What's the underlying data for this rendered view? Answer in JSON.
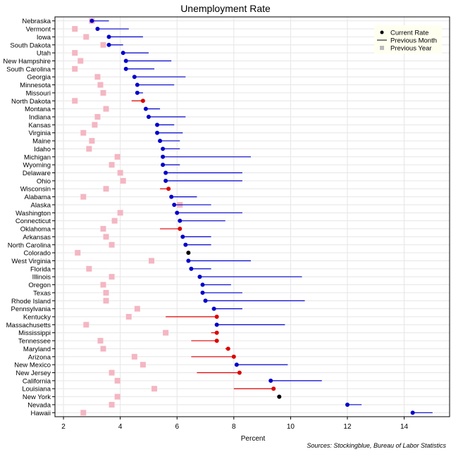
{
  "chart_data": {
    "type": "dot",
    "title": "Unemployment Rate",
    "xlabel": "Percent",
    "ylabel": "",
    "xlim": [
      1.7,
      15.6
    ],
    "x_ticks": [
      2,
      4,
      6,
      8,
      10,
      12,
      14
    ],
    "grid": true,
    "legend_position": "top-right",
    "source": "Sources: Stockingblue, Bureau of Labor Statistics",
    "legend": [
      {
        "label": "Current Rate",
        "marker": "dot"
      },
      {
        "label": "Previous Month",
        "marker": "line"
      },
      {
        "label": "Previous Year",
        "marker": "square"
      }
    ],
    "colors": {
      "improved": "#0000cc",
      "worsened": "#dd0000",
      "unchanged": "#000000",
      "previous_year": "#f4b6c2",
      "legend_bg": "#fffff0",
      "grid": "#e6e6e6"
    },
    "series": [
      {
        "name": "Current Rate",
        "values": [
          3.0,
          3.2,
          3.6,
          3.6,
          4.1,
          4.2,
          4.2,
          4.5,
          4.6,
          4.6,
          4.8,
          4.9,
          5.0,
          5.3,
          5.3,
          5.4,
          5.5,
          5.5,
          5.5,
          5.6,
          5.6,
          5.7,
          5.8,
          5.9,
          6.0,
          6.1,
          6.1,
          6.2,
          6.3,
          6.4,
          6.4,
          6.5,
          6.8,
          6.9,
          6.9,
          7.0,
          7.3,
          7.4,
          7.4,
          7.4,
          7.4,
          7.8,
          8.0,
          8.1,
          8.2,
          9.3,
          9.4,
          9.6,
          12.0,
          14.3
        ]
      },
      {
        "name": "Previous Month",
        "values": [
          3.6,
          4.3,
          4.8,
          4.1,
          5.0,
          5.8,
          5.2,
          6.3,
          5.9,
          4.8,
          4.4,
          5.4,
          6.3,
          5.9,
          6.2,
          6.1,
          6.1,
          8.6,
          6.1,
          8.3,
          8.3,
          5.4,
          6.7,
          7.2,
          8.3,
          7.7,
          5.4,
          7.2,
          7.2,
          6.4,
          8.6,
          7.2,
          10.4,
          7.9,
          8.3,
          10.5,
          8.3,
          5.6,
          9.8,
          7.2,
          6.5,
          7.7,
          6.5,
          9.9,
          6.7,
          11.1,
          8.0,
          9.6,
          12.5,
          15.0
        ]
      },
      {
        "name": "Previous Year",
        "values": [
          3.0,
          2.4,
          2.8,
          3.4,
          2.4,
          2.6,
          2.4,
          3.2,
          3.3,
          3.4,
          2.4,
          3.5,
          3.2,
          3.1,
          2.7,
          3.0,
          2.9,
          3.9,
          3.7,
          4.0,
          4.1,
          3.5,
          2.7,
          6.1,
          4.0,
          3.8,
          3.4,
          3.5,
          3.7,
          2.5,
          5.1,
          2.9,
          3.7,
          3.4,
          3.5,
          3.5,
          4.6,
          4.3,
          2.8,
          5.6,
          3.3,
          3.4,
          4.5,
          4.8,
          3.7,
          3.9,
          5.2,
          3.9,
          3.7,
          2.7
        ]
      }
    ],
    "categories": [
      "Nebraska",
      "Vermont",
      "Iowa",
      "South Dakota",
      "Utah",
      "New Hampshire",
      "South Carolina",
      "Georgia",
      "Minnesota",
      "Missouri",
      "North Dakota",
      "Montana",
      "Indiana",
      "Kansas",
      "Virginia",
      "Maine",
      "Idaho",
      "Michigan",
      "Wyoming",
      "Delaware",
      "Ohio",
      "Wisconsin",
      "Alabama",
      "Alaska",
      "Washington",
      "Connecticut",
      "Oklahoma",
      "Arkansas",
      "North Carolina",
      "Colorado",
      "West Virginia",
      "Florida",
      "Illinois",
      "Oregon",
      "Texas",
      "Rhode Island",
      "Pennsylvania",
      "Kentucky",
      "Massachusetts",
      "Mississippi",
      "Tennessee",
      "Maryland",
      "Arizona",
      "New Mexico",
      "New Jersey",
      "California",
      "Louisiana",
      "New York",
      "Nevada",
      "Hawaii"
    ]
  }
}
